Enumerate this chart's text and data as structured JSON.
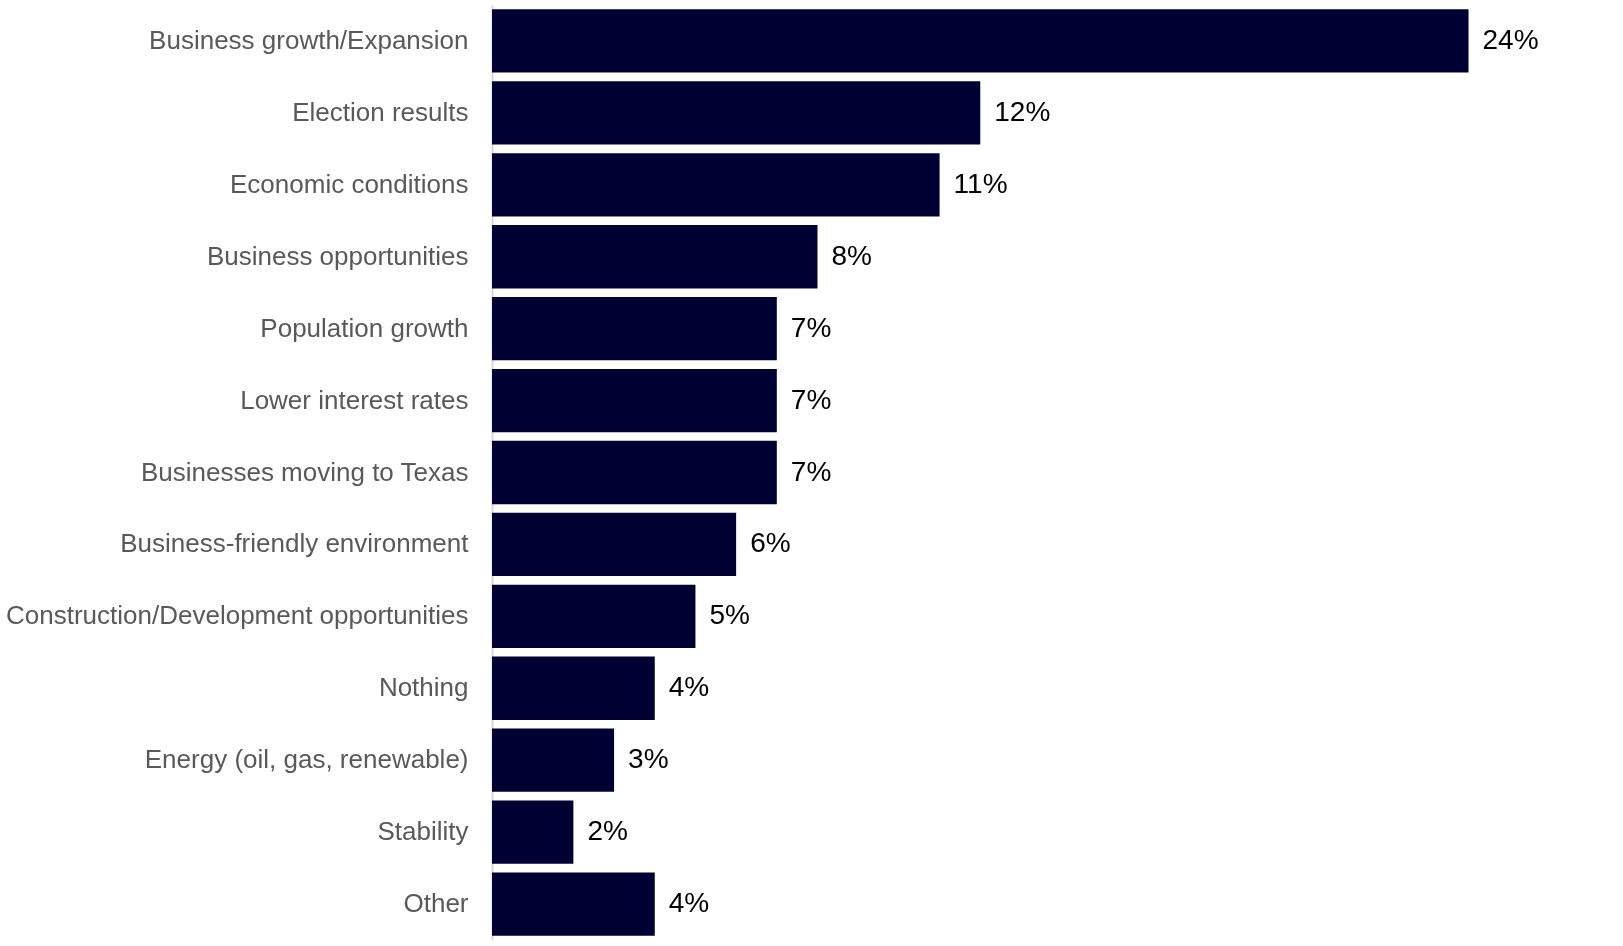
{
  "chart_data": {
    "type": "bar",
    "orientation": "horizontal",
    "grid": false,
    "categories": [
      "Business growth/Expansion",
      "Election results",
      "Economic conditions",
      "Business opportunities",
      "Population growth",
      "Lower interest rates",
      "Businesses moving to Texas",
      "Business-friendly environment",
      "Construction/Development opportunities",
      "Nothing",
      "Energy (oil, gas, renewable)",
      "Stability",
      "Other"
    ],
    "values": [
      24,
      12,
      11,
      8,
      7,
      7,
      7,
      6,
      5,
      4,
      3,
      2,
      4
    ],
    "value_labels": [
      "24%",
      "12%",
      "11%",
      "8%",
      "7%",
      "7%",
      "7%",
      "6%",
      "5%",
      "4%",
      "3%",
      "2%",
      "4%"
    ],
    "color": "#000033"
  }
}
